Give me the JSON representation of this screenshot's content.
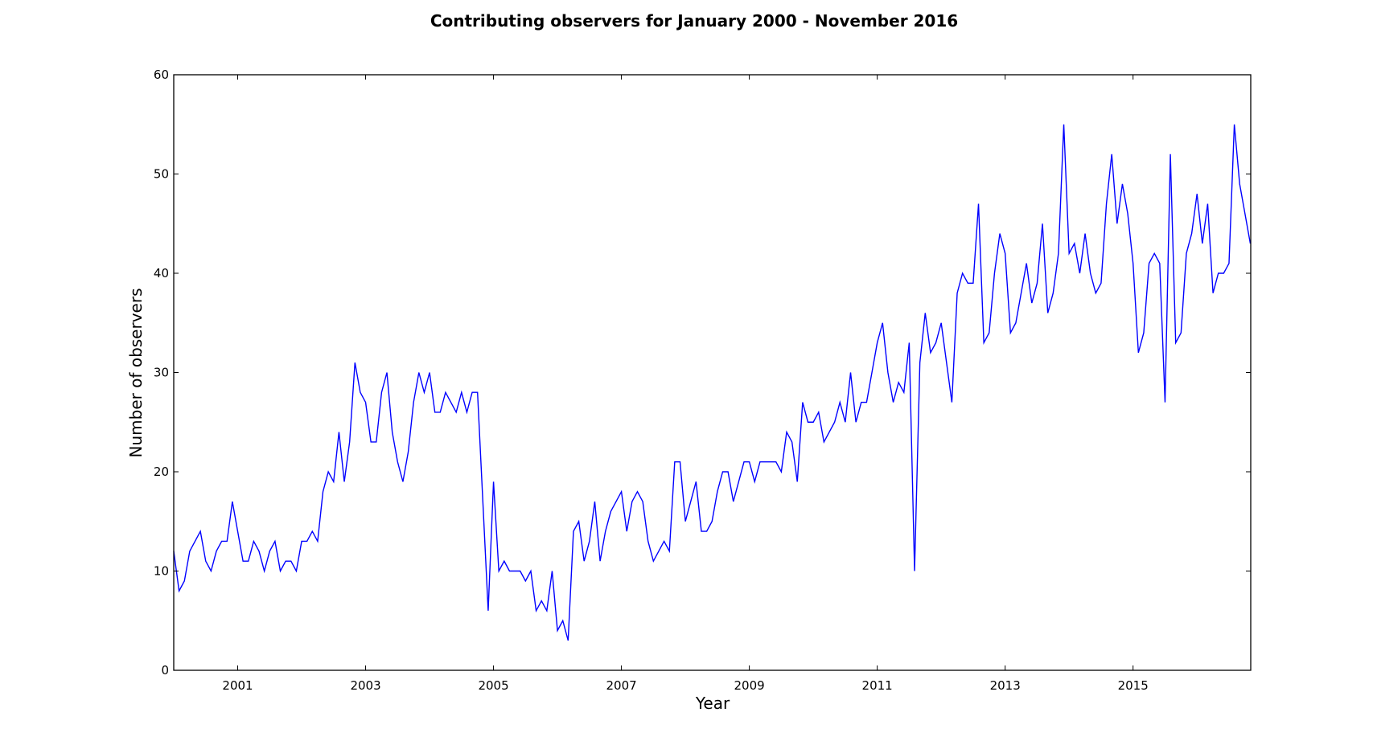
{
  "chart_data": {
    "type": "line",
    "title": "Contributing observers for January 2000 - November 2016",
    "xlabel": "Year",
    "ylabel": "Number of observers",
    "xlim": [
      2000.0,
      2016.84
    ],
    "ylim": [
      0,
      60
    ],
    "x_ticks": [
      2001,
      2003,
      2005,
      2007,
      2009,
      2011,
      2013,
      2015
    ],
    "y_ticks": [
      0,
      10,
      20,
      30,
      40,
      50,
      60
    ],
    "grid": false,
    "line_color": "#0000ff",
    "x_start": "2000-01",
    "series": [
      {
        "values": [
          12,
          8,
          9,
          12,
          13,
          14,
          11,
          10,
          12,
          13,
          13,
          17,
          14,
          11,
          11,
          13,
          12,
          10,
          12,
          13,
          10,
          11,
          11,
          10,
          13,
          13,
          14,
          13,
          18,
          20,
          19,
          24,
          19,
          23,
          31,
          28,
          27,
          23,
          23,
          28,
          30,
          24,
          21,
          19,
          22,
          27,
          30,
          28,
          30,
          26,
          26,
          28,
          27,
          26,
          28,
          26,
          28,
          28,
          17,
          6,
          19,
          10,
          11,
          10,
          10,
          10,
          9,
          10,
          6,
          7,
          6,
          10,
          4,
          5,
          3,
          14,
          15,
          11,
          13,
          17,
          11,
          14,
          16,
          17,
          18,
          14,
          17,
          18,
          17,
          13,
          11,
          12,
          13,
          12,
          21,
          21,
          15,
          17,
          19,
          14,
          14,
          15,
          18,
          20,
          20,
          17,
          19,
          21,
          21,
          19,
          21,
          21,
          21,
          21,
          20,
          24,
          23,
          19,
          27,
          25,
          25,
          26,
          23,
          24,
          25,
          27,
          25,
          30,
          25,
          27,
          27,
          30,
          33,
          35,
          30,
          27,
          29,
          28,
          33,
          10,
          31,
          36,
          32,
          33,
          35,
          31,
          27,
          38,
          40,
          39,
          39,
          47,
          33,
          34,
          40,
          44,
          42,
          34,
          35,
          38,
          41,
          37,
          39,
          45,
          36,
          38,
          42,
          55,
          42,
          43,
          40,
          44,
          40,
          38,
          39,
          47,
          52,
          45,
          49,
          46,
          41,
          32,
          34,
          41,
          42,
          41,
          27,
          52,
          33,
          34,
          42,
          44,
          48,
          43,
          47,
          38,
          40,
          40,
          41,
          55,
          49,
          46,
          43
        ]
      }
    ]
  }
}
